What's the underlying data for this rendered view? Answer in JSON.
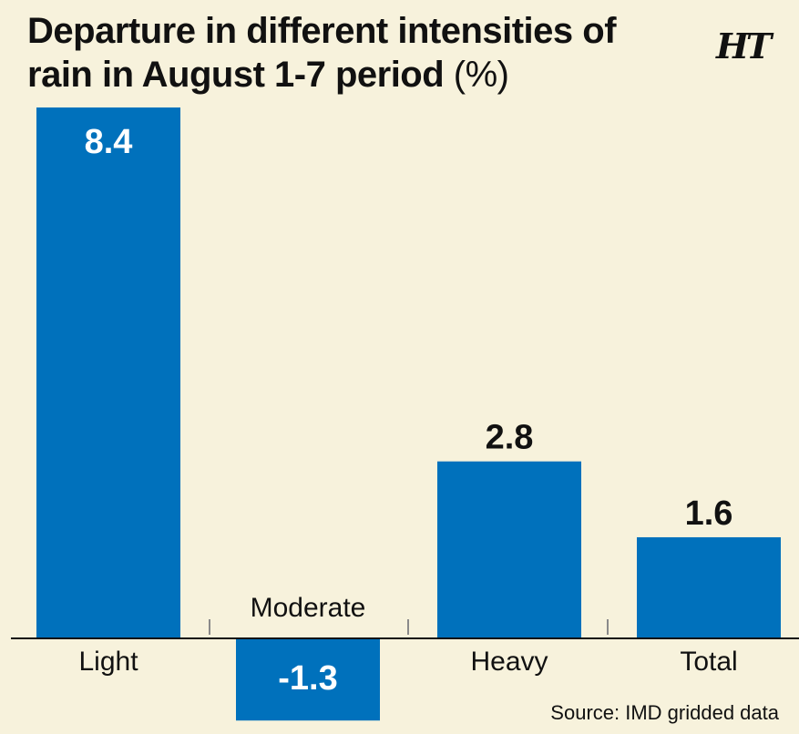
{
  "header": {
    "title": "Departure in different intensities of rain in August 1-7 period",
    "title_unit": "(%)",
    "logo": "HT"
  },
  "source": "Source: IMD gridded data",
  "colors": {
    "bar": "#0071bc",
    "background": "#f7f2dc",
    "text": "#111111",
    "bar_label_inside": "#ffffff"
  },
  "chart_data": {
    "type": "bar",
    "title": "Departure in different intensities of rain in August 1-7 period (%)",
    "categories": [
      "Light",
      "Moderate",
      "Heavy",
      "Total"
    ],
    "values": [
      8.4,
      -1.3,
      2.8,
      1.6
    ],
    "value_labels": [
      "8.4",
      "-1.3",
      "2.8",
      "1.6"
    ],
    "xlabel": "",
    "ylabel": "",
    "ylim": [
      -1.3,
      8.4
    ],
    "grid": false,
    "legend": "none"
  }
}
